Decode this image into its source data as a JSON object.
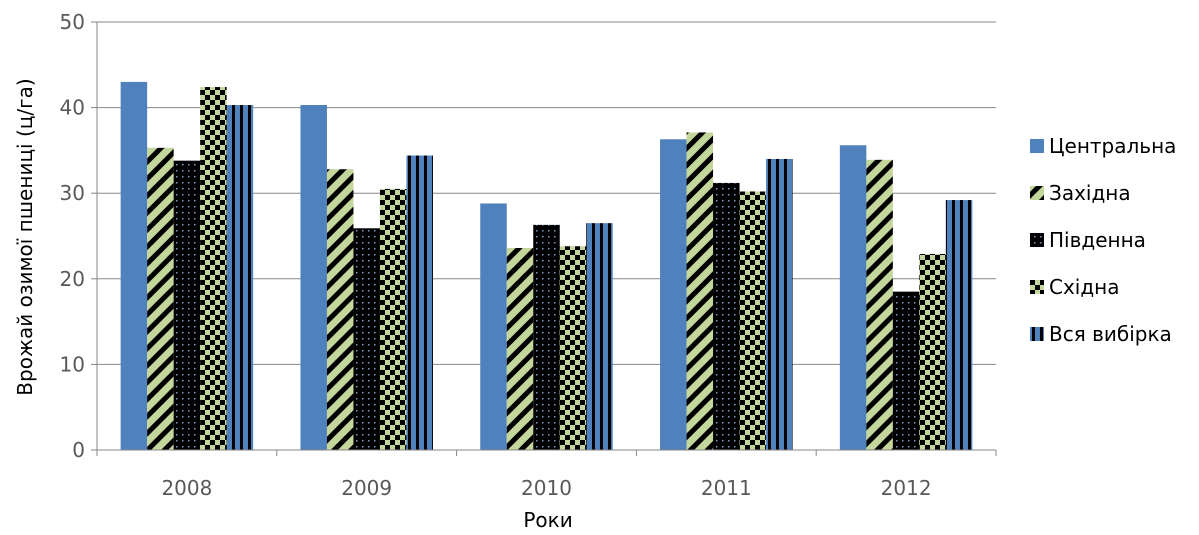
{
  "chart_data": {
    "type": "bar",
    "title": "",
    "xlabel": "Роки",
    "ylabel": "Врожай озимої пшениці (ц/га)",
    "ylim": [
      0,
      50
    ],
    "yticks": [
      "0",
      "10",
      "20",
      "30",
      "40",
      "50"
    ],
    "categories": [
      "2008",
      "2009",
      "2010",
      "2011",
      "2012"
    ],
    "grid": true,
    "legend_position": "right",
    "series": [
      {
        "name": "Центральна",
        "values": [
          43.0,
          40.3,
          28.8,
          36.3,
          35.6
        ],
        "color": "#4F81BD",
        "pattern": "solid"
      },
      {
        "name": "Західна",
        "values": [
          35.3,
          32.8,
          23.6,
          37.1,
          33.9
        ],
        "color": "#C3D69B",
        "pattern": "wide-diagonal"
      },
      {
        "name": "Південна",
        "values": [
          33.8,
          25.9,
          26.3,
          31.2,
          18.5
        ],
        "color": "#000000",
        "pattern": "dotted-grid"
      },
      {
        "name": "Східна",
        "values": [
          42.4,
          30.5,
          23.8,
          30.2,
          22.9
        ],
        "color": "#C3D69B",
        "pattern": "checkerboard"
      },
      {
        "name": "Вся вибірка",
        "values": [
          40.3,
          34.4,
          26.5,
          34.0,
          29.2
        ],
        "color": "#4F81BD",
        "pattern": "vertical-stripes"
      }
    ]
  }
}
